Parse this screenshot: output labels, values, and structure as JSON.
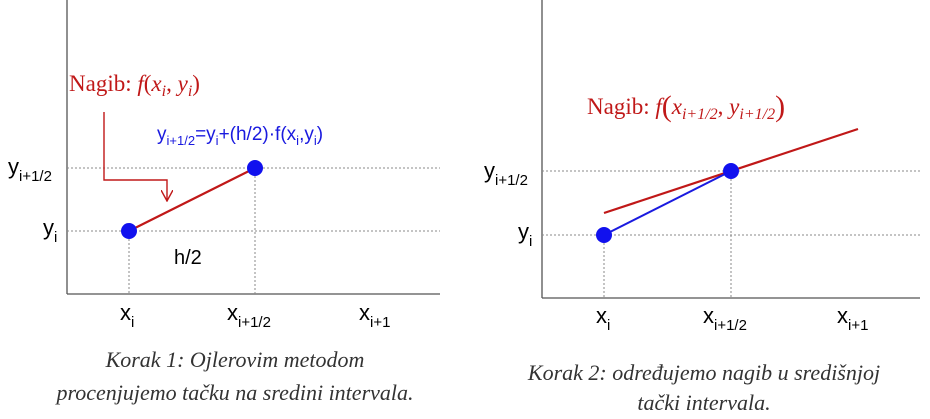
{
  "colors": {
    "red": "#c01818",
    "blue": "#1a1adf",
    "point": "#1111ee",
    "text": "#000000",
    "caption": "#333333"
  },
  "panel1": {
    "y_labels": [
      {
        "main": "y",
        "sub": "i+1/2"
      },
      {
        "main": "y",
        "sub": "i"
      }
    ],
    "x_labels": [
      {
        "main": "x",
        "sub": "i"
      },
      {
        "main": "x",
        "sub": "i+1/2"
      },
      {
        "main": "x",
        "sub": "i+1"
      }
    ],
    "slope_label": {
      "prefix": "Nagib: ",
      "f": "f",
      "open": "(",
      "x": "x",
      "x_sub": "i",
      "comma": ", ",
      "y": "y",
      "y_sub": "i",
      "close": ")"
    },
    "formula": {
      "y1": "y",
      "y1_sub": "i+1/2",
      "mid": "=y",
      "mid_sub": "i",
      "rest": "+(h/2)·f(x",
      "x_sub": "i",
      "comma": ",y",
      "y_sub": "i",
      "close": ")"
    },
    "step_label": "h/2",
    "caption": [
      "Korak 1: Ojlerovim metodom",
      "procenjujemo tačku na sredini intervala."
    ]
  },
  "panel2": {
    "y_labels": [
      {
        "main": "y",
        "sub": "i+1/2"
      },
      {
        "main": "y",
        "sub": "i"
      }
    ],
    "x_labels": [
      {
        "main": "x",
        "sub": "i"
      },
      {
        "main": "x",
        "sub": "i+1/2"
      },
      {
        "main": "x",
        "sub": "i+1"
      }
    ],
    "slope_label": {
      "prefix": "Nagib: ",
      "f": "f",
      "open": "(",
      "x": "x",
      "x_sub": "i+1/2",
      "comma": ", ",
      "y": "y",
      "y_sub": "i+1/2",
      "close": ")"
    },
    "caption": [
      "Korak 2: određujemo nagib u središnjoj",
      "tački intervala."
    ]
  }
}
